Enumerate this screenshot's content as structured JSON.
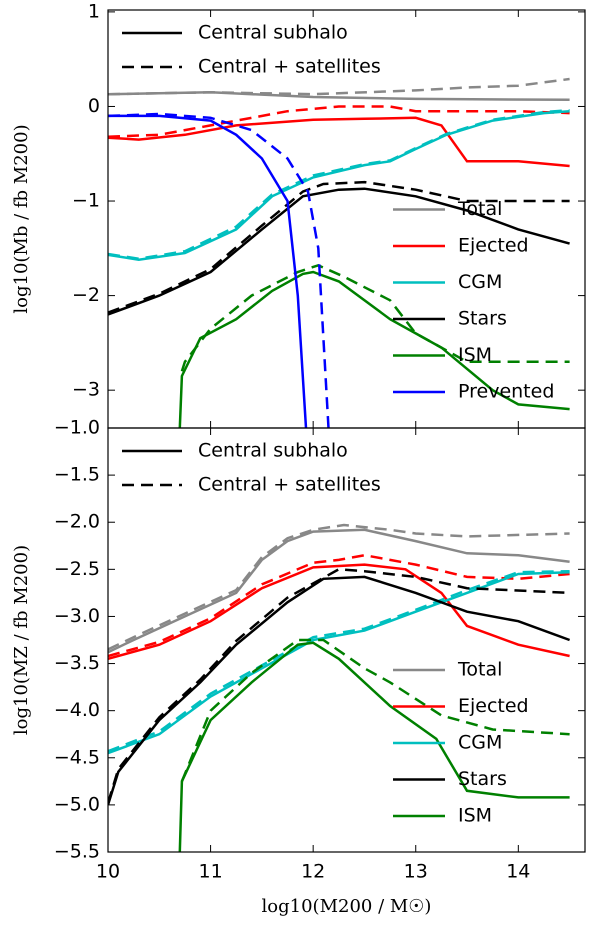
{
  "chart_data": [
    {
      "type": "line",
      "y_label": "log10(Mb / fb M200)",
      "xlim": [
        10,
        14.65
      ],
      "ylim": [
        -3.4,
        1.02
      ],
      "xticks": [
        10,
        11,
        12,
        13,
        14
      ],
      "yticks": [
        1,
        0,
        {
          "value": -1,
          "label": "−1"
        },
        {
          "value": -2,
          "label": "−2"
        },
        {
          "value": -3,
          "label": "−3"
        }
      ],
      "grid": false,
      "style_legend": [
        {
          "name": "Central subhalo",
          "dashed": false
        },
        {
          "name": "Central + satellites",
          "dashed": true
        }
      ],
      "legend_entries": [
        {
          "name": "Total",
          "color": "#888888"
        },
        {
          "name": "Ejected",
          "color": "#ff0000"
        },
        {
          "name": "CGM",
          "color": "#00bfbf"
        },
        {
          "name": "Stars",
          "color": "#000000"
        },
        {
          "name": "ISM",
          "color": "#008000"
        },
        {
          "name": "Prevented",
          "color": "#0000ff"
        }
      ],
      "legend": "lower right",
      "series": [
        {
          "color": "#888888",
          "dashed": false,
          "x": [
            10,
            11,
            12,
            13,
            14.5
          ],
          "values": [
            0.13,
            0.15,
            0.1,
            0.08,
            0.07
          ]
        },
        {
          "color": "#888888",
          "dashed": true,
          "x": [
            10,
            11,
            12,
            13,
            13.5,
            14,
            14.5
          ],
          "values": [
            0.13,
            0.15,
            0.13,
            0.17,
            0.2,
            0.22,
            0.29
          ]
        },
        {
          "color": "#ff0000",
          "dashed": false,
          "x": [
            10,
            10.3,
            10.75,
            11.25,
            12,
            12.5,
            13,
            13.25,
            13.5,
            14,
            14.5
          ],
          "values": [
            -0.33,
            -0.35,
            -0.3,
            -0.2,
            -0.14,
            -0.13,
            -0.12,
            -0.2,
            -0.58,
            -0.58,
            -0.63
          ]
        },
        {
          "color": "#ff0000",
          "dashed": true,
          "x": [
            10,
            10.5,
            11,
            11.75,
            12.25,
            12.75,
            13,
            13.5,
            14,
            14.5
          ],
          "values": [
            -0.32,
            -0.3,
            -0.2,
            -0.05,
            0.0,
            0.0,
            -0.05,
            -0.05,
            -0.05,
            -0.07
          ]
        },
        {
          "color": "#00bfbf",
          "dashed": false,
          "x": [
            10,
            10.3,
            10.75,
            11.25,
            11.6,
            12,
            12.5,
            12.75,
            13,
            13.3,
            13.75,
            14.25,
            14.5
          ],
          "values": [
            -1.57,
            -1.62,
            -1.55,
            -1.3,
            -0.95,
            -0.75,
            -0.62,
            -0.58,
            -0.45,
            -0.3,
            -0.15,
            -0.07,
            -0.05
          ]
        },
        {
          "color": "#00bfbf",
          "dashed": true,
          "x": [
            10,
            10.3,
            10.75,
            11.25,
            11.6,
            12,
            12.5,
            12.75,
            13,
            13.3,
            13.75,
            14.25,
            14.5
          ],
          "values": [
            -1.56,
            -1.61,
            -1.53,
            -1.27,
            -0.93,
            -0.73,
            -0.61,
            -0.57,
            -0.44,
            -0.29,
            -0.14,
            -0.06,
            -0.04
          ]
        },
        {
          "color": "#000000",
          "dashed": false,
          "x": [
            10,
            10.5,
            11,
            11.5,
            11.9,
            12.25,
            12.5,
            13,
            13.5,
            14,
            14.5
          ],
          "values": [
            -2.2,
            -2.0,
            -1.75,
            -1.3,
            -0.95,
            -0.88,
            -0.87,
            -0.95,
            -1.1,
            -1.3,
            -1.45
          ]
        },
        {
          "color": "#000000",
          "dashed": true,
          "x": [
            10,
            10.5,
            11,
            11.5,
            11.9,
            12.1,
            12.5,
            13,
            13.5,
            14,
            14.5
          ],
          "values": [
            -2.18,
            -1.98,
            -1.72,
            -1.26,
            -0.9,
            -0.82,
            -0.8,
            -0.88,
            -1.0,
            -1.0,
            -1.0
          ]
        },
        {
          "color": "#008000",
          "dashed": false,
          "x": [
            10.7,
            10.72,
            10.9,
            11.25,
            11.6,
            11.9,
            12,
            12.25,
            12.75,
            13,
            13.25,
            13.75,
            14,
            14.5
          ],
          "values": [
            -3.4,
            -2.85,
            -2.45,
            -2.25,
            -1.95,
            -1.77,
            -1.75,
            -1.85,
            -2.25,
            -2.4,
            -2.55,
            -3.0,
            -3.15,
            -3.2
          ]
        },
        {
          "color": "#008000",
          "dashed": true,
          "x": [
            10.72,
            10.75,
            11,
            11.4,
            11.85,
            12.05,
            12.3,
            12.75,
            13,
            13.25,
            13.5,
            14.5
          ],
          "values": [
            -2.8,
            -2.7,
            -2.35,
            -2.0,
            -1.75,
            -1.68,
            -1.8,
            -2.05,
            -2.4,
            -2.55,
            -2.7,
            -2.7
          ]
        },
        {
          "color": "#0000ff",
          "dashed": false,
          "x": [
            10,
            10.5,
            11,
            11.25,
            11.5,
            11.75,
            11.85,
            11.93
          ],
          "values": [
            -0.1,
            -0.1,
            -0.15,
            -0.3,
            -0.55,
            -1.0,
            -2.0,
            -3.4
          ]
        },
        {
          "color": "#0000ff",
          "dashed": true,
          "x": [
            10,
            10.5,
            11,
            11.4,
            11.75,
            11.95,
            12.05,
            12.15
          ],
          "values": [
            -0.1,
            -0.08,
            -0.12,
            -0.25,
            -0.55,
            -0.9,
            -1.5,
            -3.4
          ]
        }
      ]
    },
    {
      "type": "line",
      "x_label": "log10(M200 / M☉)",
      "y_label": "log10(MZ / fb M200)",
      "xlim": [
        10,
        14.65
      ],
      "ylim": [
        -5.5,
        -1.0
      ],
      "xticks": [
        10,
        11,
        12,
        13,
        14
      ],
      "yticks": [
        {
          "value": -1.0,
          "label": "−1.0"
        },
        {
          "value": -1.5,
          "label": "−1.5"
        },
        {
          "value": -2.0,
          "label": "−2.0"
        },
        {
          "value": -2.5,
          "label": "−2.5"
        },
        {
          "value": -3.0,
          "label": "−3.0"
        },
        {
          "value": -3.5,
          "label": "−3.5"
        },
        {
          "value": -4.0,
          "label": "−4.0"
        },
        {
          "value": -4.5,
          "label": "−4.5"
        },
        {
          "value": -5.0,
          "label": "−5.0"
        },
        {
          "value": -5.5,
          "label": "−5.5"
        }
      ],
      "grid": false,
      "style_legend": [
        {
          "name": "Central subhalo",
          "dashed": false
        },
        {
          "name": "Central + satellites",
          "dashed": true
        }
      ],
      "legend_entries": [
        {
          "name": "Total",
          "color": "#888888"
        },
        {
          "name": "Ejected",
          "color": "#ff0000"
        },
        {
          "name": "CGM",
          "color": "#00bfbf"
        },
        {
          "name": "Stars",
          "color": "#000000"
        },
        {
          "name": "ISM",
          "color": "#008000"
        }
      ],
      "legend": "lower right",
      "series": [
        {
          "color": "#888888",
          "dashed": false,
          "x": [
            10,
            10.25,
            10.75,
            11.25,
            11.5,
            11.75,
            12,
            12.5,
            13,
            13.5,
            14,
            14.5
          ],
          "values": [
            -3.38,
            -3.25,
            -3.0,
            -2.75,
            -2.4,
            -2.2,
            -2.1,
            -2.08,
            -2.2,
            -2.33,
            -2.35,
            -2.42
          ]
        },
        {
          "color": "#888888",
          "dashed": true,
          "x": [
            10,
            10.25,
            10.75,
            11.25,
            11.5,
            11.75,
            12,
            12.3,
            12.75,
            13,
            13.5,
            14.5
          ],
          "values": [
            -3.35,
            -3.22,
            -2.97,
            -2.72,
            -2.37,
            -2.17,
            -2.08,
            -2.03,
            -2.08,
            -2.12,
            -2.15,
            -2.12
          ]
        },
        {
          "color": "#ff0000",
          "dashed": false,
          "x": [
            10,
            10.5,
            11,
            11.5,
            12,
            12.5,
            12.9,
            13.25,
            13.5,
            14,
            14.5
          ],
          "values": [
            -3.45,
            -3.3,
            -3.05,
            -2.7,
            -2.48,
            -2.45,
            -2.5,
            -2.75,
            -3.1,
            -3.3,
            -3.42
          ]
        },
        {
          "color": "#ff0000",
          "dashed": true,
          "x": [
            10,
            10.5,
            11,
            11.5,
            12,
            12.25,
            12.5,
            13,
            13.5,
            14,
            14.5
          ],
          "values": [
            -3.42,
            -3.27,
            -3.02,
            -2.66,
            -2.43,
            -2.4,
            -2.35,
            -2.45,
            -2.58,
            -2.6,
            -2.55
          ]
        },
        {
          "color": "#00bfbf",
          "dashed": false,
          "x": [
            10,
            10.5,
            11,
            11.5,
            12,
            12.5,
            13,
            13.5,
            14,
            14.5
          ],
          "values": [
            -4.45,
            -4.25,
            -3.85,
            -3.55,
            -3.25,
            -3.15,
            -2.95,
            -2.75,
            -2.55,
            -2.53
          ]
        },
        {
          "color": "#00bfbf",
          "dashed": true,
          "x": [
            10,
            10.5,
            11,
            11.5,
            12,
            12.5,
            13,
            13.5,
            14,
            14.5
          ],
          "values": [
            -4.43,
            -4.22,
            -3.82,
            -3.52,
            -3.22,
            -3.13,
            -2.93,
            -2.72,
            -2.53,
            -2.52
          ]
        },
        {
          "color": "#000000",
          "dashed": false,
          "x": [
            10,
            10.1,
            10.5,
            10.9,
            11.25,
            11.75,
            12.1,
            12.5,
            13,
            13.5,
            14,
            14.5
          ],
          "values": [
            -5.0,
            -4.65,
            -4.1,
            -3.7,
            -3.3,
            -2.85,
            -2.6,
            -2.58,
            -2.75,
            -2.95,
            -3.05,
            -3.25
          ]
        },
        {
          "color": "#000000",
          "dashed": true,
          "x": [
            10,
            10.1,
            10.5,
            10.9,
            11.25,
            11.75,
            12.25,
            12.5,
            13,
            13.5,
            14.5
          ],
          "values": [
            -4.98,
            -4.62,
            -4.07,
            -3.67,
            -3.26,
            -2.8,
            -2.5,
            -2.52,
            -2.58,
            -2.7,
            -2.75
          ]
        },
        {
          "color": "#008000",
          "dashed": false,
          "x": [
            10.7,
            10.72,
            11,
            11.4,
            11.85,
            12,
            12.25,
            12.75,
            13.2,
            13.5,
            14,
            14.5
          ],
          "values": [
            -5.5,
            -4.75,
            -4.1,
            -3.7,
            -3.3,
            -3.28,
            -3.45,
            -3.95,
            -4.3,
            -4.85,
            -4.92,
            -4.92
          ]
        },
        {
          "color": "#008000",
          "dashed": true,
          "x": [
            10.72,
            11,
            11.4,
            11.85,
            12.1,
            12.5,
            12.75,
            13.25,
            13.75,
            14.5
          ],
          "values": [
            -4.75,
            -4.0,
            -3.6,
            -3.25,
            -3.25,
            -3.55,
            -3.7,
            -4.05,
            -4.2,
            -4.25
          ]
        }
      ]
    }
  ]
}
